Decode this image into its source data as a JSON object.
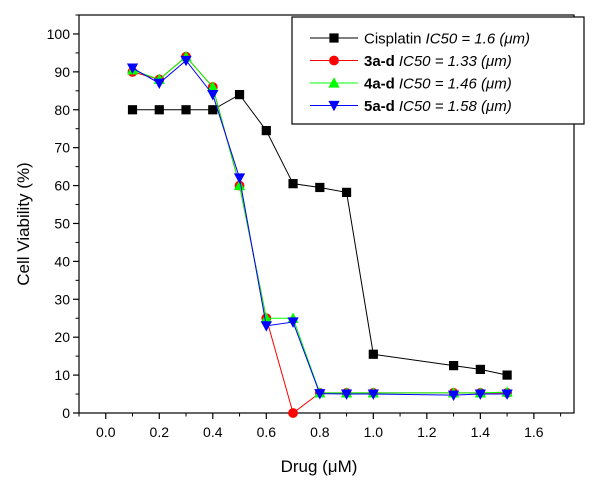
{
  "chart_data": {
    "type": "line",
    "xlabel": "Drug (μM)",
    "ylabel": "Cell Viability (%)",
    "xlim": [
      -0.1,
      1.75
    ],
    "ylim": [
      0,
      105
    ],
    "x_ticks": [
      "0.0",
      "0.2",
      "0.4",
      "0.6",
      "0.8",
      "1.0",
      "1.2",
      "1.4",
      "1.6"
    ],
    "y_ticks": [
      "0",
      "10",
      "20",
      "30",
      "40",
      "50",
      "60",
      "70",
      "80",
      "90",
      "100"
    ],
    "grid": false,
    "legend_position": "top-right",
    "series": [
      {
        "name": "Cisplatin",
        "name_suffix": "IC50 = 1.6 (μm)",
        "color": "#000000",
        "marker": "square",
        "x": [
          0.1,
          0.2,
          0.3,
          0.4,
          0.5,
          0.6,
          0.7,
          0.8,
          0.9,
          1.0,
          1.3,
          1.4,
          1.5
        ],
        "y": [
          80,
          80,
          80,
          80,
          84,
          74.5,
          60.5,
          59.5,
          58.2,
          15.5,
          12.5,
          11.5,
          10
        ]
      },
      {
        "name": "3a-d",
        "name_suffix": "IC50 = 1.33 (μm)",
        "color": "#ff0000",
        "marker": "circle",
        "x": [
          0.1,
          0.2,
          0.3,
          0.4,
          0.5,
          0.6,
          0.7,
          0.8,
          0.9,
          1.0,
          1.3,
          1.4,
          1.5
        ],
        "y": [
          90,
          88,
          94,
          86,
          60,
          25,
          0,
          5.3,
          5.3,
          5.3,
          5.3,
          5.3,
          5.3
        ]
      },
      {
        "name": "4a-d",
        "name_suffix": "IC50 = 1.46 (μm)",
        "color": "#00ff00",
        "marker": "triangle-up",
        "x": [
          0.1,
          0.2,
          0.3,
          0.4,
          0.5,
          0.6,
          0.7,
          0.8,
          0.9,
          1.0,
          1.3,
          1.4,
          1.5
        ],
        "y": [
          90.5,
          88,
          94,
          86,
          60,
          25,
          25,
          5.3,
          5.3,
          5.3,
          5.3,
          5.3,
          5.5
        ]
      },
      {
        "name": "5a-d",
        "name_suffix": "IC50 = 1.58 (μm)",
        "color": "#0000ff",
        "marker": "triangle-down",
        "x": [
          0.1,
          0.2,
          0.3,
          0.4,
          0.5,
          0.6,
          0.7,
          0.8,
          0.9,
          1.0,
          1.3,
          1.4,
          1.5
        ],
        "y": [
          91,
          87,
          93,
          84,
          62,
          23,
          24,
          5.1,
          5,
          5,
          4.7,
          5,
          5
        ]
      }
    ]
  }
}
